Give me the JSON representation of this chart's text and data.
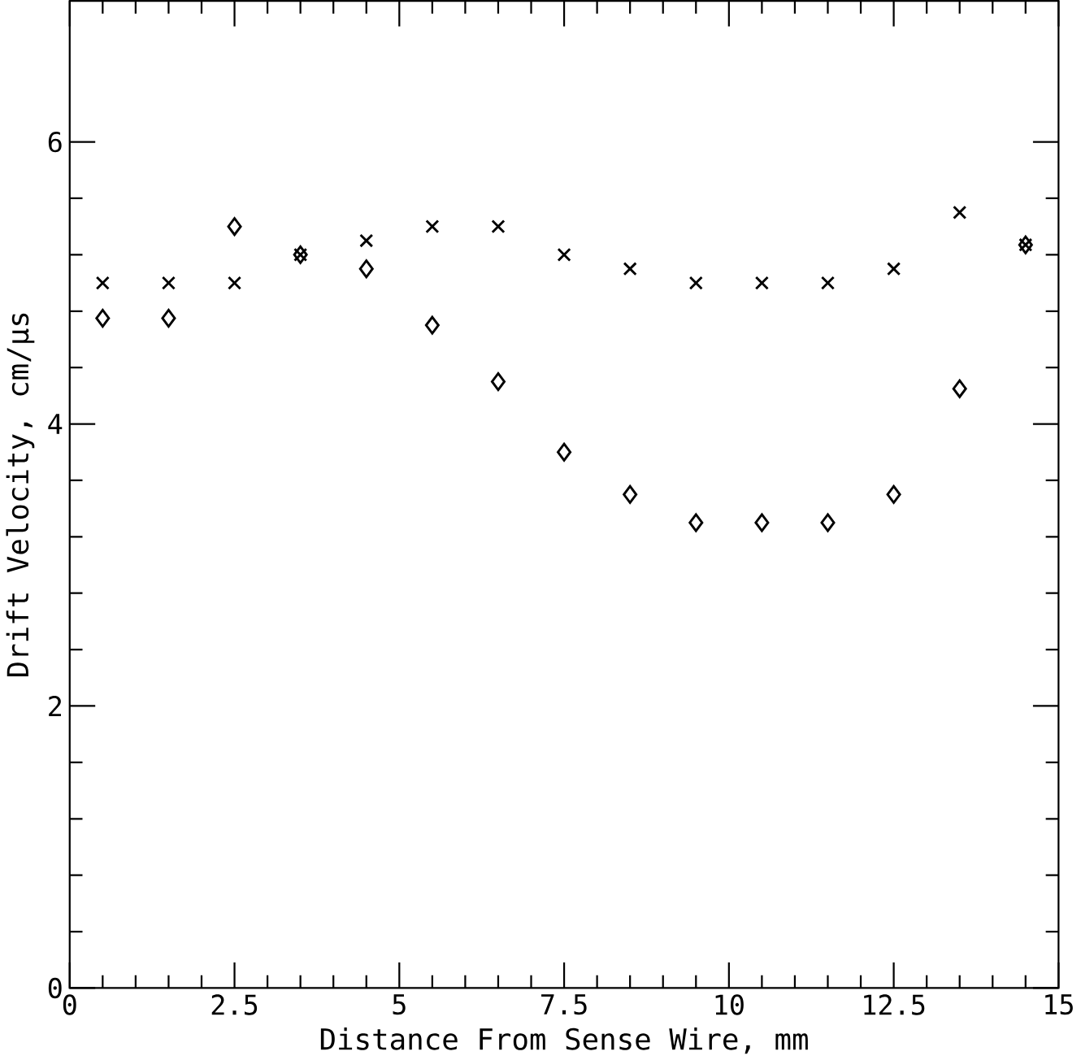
{
  "chart_data": {
    "type": "scatter",
    "xlabel": "Distance From Sense Wire, mm",
    "ylabel": "Drift Velocity, cm/μs",
    "x": [
      0.5,
      1.5,
      2.5,
      3.5,
      4.5,
      5.5,
      6.5,
      7.5,
      8.5,
      9.5,
      10.5,
      11.5,
      12.5,
      13.5,
      14.5
    ],
    "series": [
      {
        "color": "#000000",
        "marker": "cross",
        "values": [
          5.0,
          5.0,
          5.0,
          5.2,
          5.3,
          5.4,
          5.4,
          5.2,
          5.1,
          5.0,
          5.0,
          5.0,
          5.1,
          5.5,
          5.27
        ]
      },
      {
        "color": "#000000",
        "marker": "diamond",
        "values": [
          4.75,
          4.75,
          5.4,
          5.2,
          5.1,
          4.7,
          4.3,
          3.8,
          3.5,
          3.3,
          3.3,
          3.3,
          3.5,
          4.25,
          5.27
        ]
      }
    ],
    "xlim": [
      0,
      15
    ],
    "ylim": [
      0,
      7
    ],
    "xticks": [
      0,
      2.5,
      5,
      7.5,
      10,
      12.5,
      15
    ],
    "yticks": [
      0,
      2,
      4,
      6
    ],
    "grid": false
  }
}
